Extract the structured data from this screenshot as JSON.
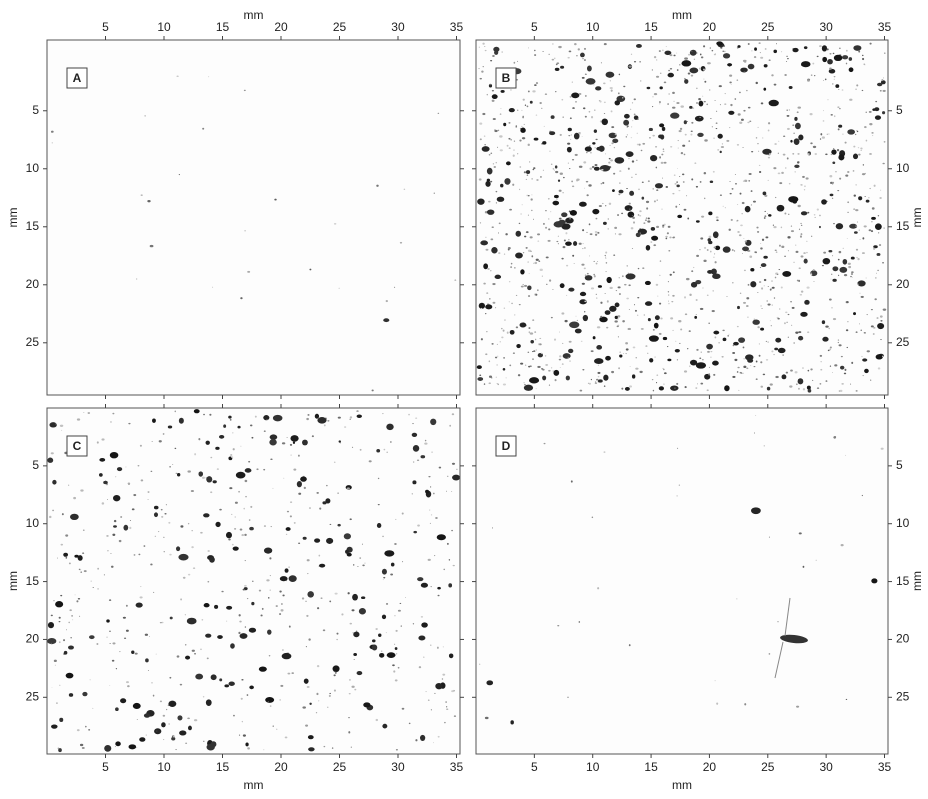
{
  "chart_data": [
    {
      "type": "image",
      "label": "A",
      "label_color": "#e02020",
      "xlabel": "mm",
      "ylabel": "mm",
      "x_axis": "top",
      "y_axis": "left",
      "xlim": [
        0,
        35.3
      ],
      "ylim": [
        -1.1,
        29.5
      ],
      "xticks": [
        5,
        10,
        15,
        20,
        25,
        30,
        35
      ],
      "yticks": [
        5,
        10,
        15,
        20,
        25
      ]
    },
    {
      "type": "image",
      "label": "B",
      "label_color": "#22aa22",
      "xlabel": "mm",
      "ylabel": "mm",
      "x_axis": "top",
      "y_axis": "right",
      "xlim": [
        0,
        35.3
      ],
      "ylim": [
        -1.1,
        29.5
      ],
      "xticks": [
        5,
        10,
        15,
        20,
        25,
        30,
        35
      ],
      "yticks": [
        5,
        10,
        15,
        20,
        25
      ]
    },
    {
      "type": "image",
      "label": "C",
      "label_color": "#2222dd",
      "xlabel": "mm",
      "ylabel": "mm",
      "x_axis": "bottom",
      "y_axis": "left",
      "xlim": [
        0,
        35.3
      ],
      "ylim": [
        0,
        29.9
      ],
      "xticks": [
        5,
        10,
        15,
        20,
        25,
        30,
        35
      ],
      "yticks": [
        5,
        10,
        15,
        20,
        25
      ]
    },
    {
      "type": "image",
      "label": "D",
      "label_color": "#000000",
      "xlabel": "mm",
      "ylabel": "mm",
      "x_axis": "bottom",
      "y_axis": "right",
      "xlim": [
        0,
        35.3
      ],
      "ylim": [
        0,
        29.9
      ],
      "xticks": [
        5,
        10,
        15,
        20,
        25,
        30,
        35
      ],
      "yticks": [
        5,
        10,
        15,
        20,
        25
      ]
    }
  ]
}
